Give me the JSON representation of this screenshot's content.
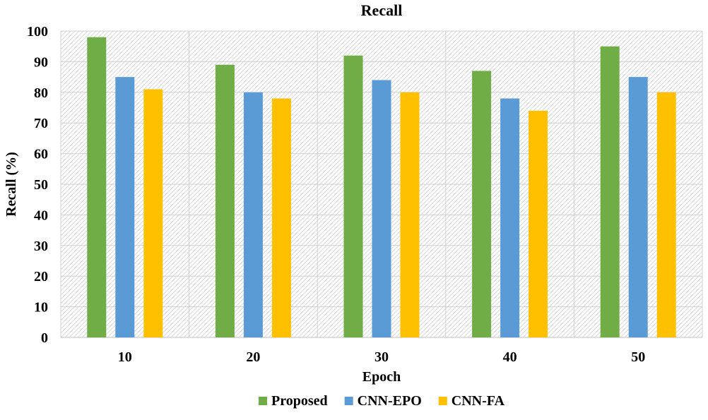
{
  "chart_data": {
    "type": "bar",
    "title": "Recall",
    "xlabel": "Epoch",
    "ylabel": "Recall (%)",
    "categories": [
      "10",
      "20",
      "30",
      "40",
      "50"
    ],
    "ylim": [
      0,
      100
    ],
    "yticks": [
      0,
      10,
      20,
      30,
      40,
      50,
      60,
      70,
      80,
      90,
      100
    ],
    "grid": true,
    "legend_position": "bottom",
    "series": [
      {
        "name": "Proposed",
        "color": "#70AD47",
        "values": [
          98,
          89,
          92,
          87,
          95
        ]
      },
      {
        "name": "CNN-EPO",
        "color": "#5B9BD5",
        "values": [
          85,
          80,
          84,
          78,
          85
        ]
      },
      {
        "name": "CNN-FA",
        "color": "#FFC000",
        "values": [
          81,
          78,
          80,
          74,
          80
        ]
      }
    ]
  }
}
